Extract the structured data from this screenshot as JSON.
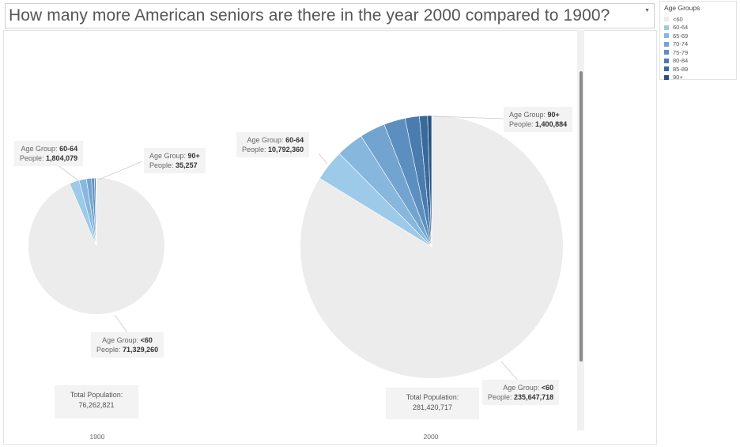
{
  "title": "How many more American seniors are there in the year 2000 compared to 1900?",
  "legend": {
    "title": "Age Groups",
    "items": [
      {
        "label": "<60",
        "color": "#ececec"
      },
      {
        "label": "60-64",
        "color": "#9dcae8"
      },
      {
        "label": "65-69",
        "color": "#87b7dc"
      },
      {
        "label": "70-74",
        "color": "#73a4cf"
      },
      {
        "label": "75-79",
        "color": "#5c8fbf"
      },
      {
        "label": "80-84",
        "color": "#4a7cae"
      },
      {
        "label": "85-89",
        "color": "#386a9c"
      },
      {
        "label": "90+",
        "color": "#25527f"
      }
    ]
  },
  "labels": {
    "age_group_prefix": "Age Group:",
    "people_prefix": "People:",
    "total_label": "Total Population:"
  },
  "chart_data": {
    "type": "pie",
    "charts": [
      {
        "year": "1900",
        "total_population": "76,262,821",
        "slices": [
          {
            "group": "<60",
            "people": 71329260
          },
          {
            "group": "60-64",
            "people": 1804079
          },
          {
            "group": "65-69",
            "people": 1320000
          },
          {
            "group": "70-74",
            "people": 910000
          },
          {
            "group": "75-79",
            "people": 530000
          },
          {
            "group": "80-84",
            "people": 262000
          },
          {
            "group": "85-89",
            "people": 72225
          },
          {
            "group": "90+",
            "people": 35257
          }
        ],
        "annotations": [
          {
            "group": "60-64",
            "people": "1,804,079"
          },
          {
            "group": "90+",
            "people": "35,257"
          },
          {
            "group": "<60",
            "people": "71,329,260"
          }
        ]
      },
      {
        "year": "2000",
        "total_population": "281,420,717",
        "slices": [
          {
            "group": "<60",
            "people": 235647718
          },
          {
            "group": "60-64",
            "people": 10792360
          },
          {
            "group": "65-69",
            "people": 9533545
          },
          {
            "group": "70-74",
            "people": 8857441
          },
          {
            "group": "75-79",
            "people": 7415813
          },
          {
            "group": "80-84",
            "people": 4945367
          },
          {
            "group": "85-89",
            "people": 2827589
          },
          {
            "group": "90+",
            "people": 1400884
          }
        ],
        "annotations": [
          {
            "group": "60-64",
            "people": "10,792,360"
          },
          {
            "group": "90+",
            "people": "1,400,884"
          },
          {
            "group": "<60",
            "people": "235,647,718"
          }
        ]
      }
    ]
  }
}
